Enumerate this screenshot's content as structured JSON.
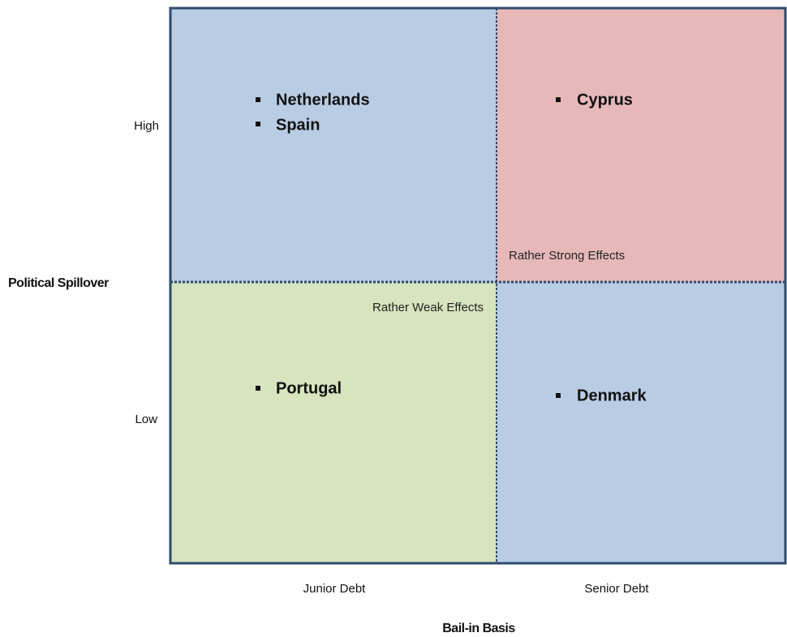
{
  "y_axis": {
    "label": "Political Spillover",
    "levels": [
      "High",
      "Low"
    ]
  },
  "x_axis": {
    "label": "Bail-in Basis",
    "levels": [
      "Junior Debt",
      "Senior Debt"
    ]
  },
  "quadrants": [
    {
      "items": [
        "Netherlands",
        "Spain"
      ]
    },
    {
      "items": [
        "Cyprus"
      ],
      "note": "Rather Strong Effects"
    },
    {
      "items": [
        "Portugal"
      ],
      "note": "Rather Weak Effects"
    },
    {
      "items": [
        "Denmark"
      ]
    }
  ]
}
